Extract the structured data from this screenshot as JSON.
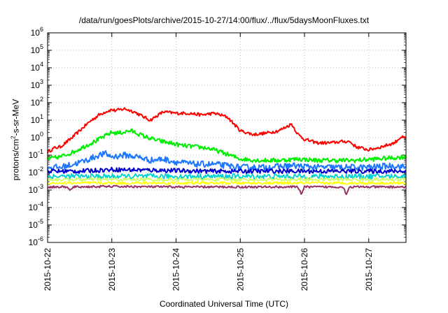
{
  "chart_data": {
    "type": "line",
    "title": "/data/run/goesPlots/archive/2015-10-27/14:00/flux/../flux/5daysMoonFluxes.txt",
    "xlabel": "Coordinated Universal Time (UTC)",
    "ylabel": {
      "base": "protons/cm",
      "exp": "2",
      "rest": "-s-sr-MeV"
    },
    "y_scale": "log",
    "ylim": [
      1e-06,
      1000000.0
    ],
    "xlim": [
      "2015-10-22T00:00",
      "2015-10-27T14:00"
    ],
    "x_ticks": [
      "2015-10-22",
      "2015-10-23",
      "2015-10-24",
      "2015-10-25",
      "2015-10-26",
      "2015-10-27"
    ],
    "y_ticks": [
      {
        "base": "10",
        "exp": "-6"
      },
      {
        "base": "10",
        "exp": "-5"
      },
      {
        "base": "10",
        "exp": "-4"
      },
      {
        "base": "10",
        "exp": "-3"
      },
      {
        "base": "10",
        "exp": "-2"
      },
      {
        "base": "10",
        "exp": "-1"
      },
      {
        "base": "10",
        "exp": "0"
      },
      {
        "base": "10",
        "exp": "1"
      },
      {
        "base": "10",
        "exp": "2"
      },
      {
        "base": "10",
        "exp": "3"
      },
      {
        "base": "10",
        "exp": "4"
      },
      {
        "base": "10",
        "exp": "5"
      },
      {
        "base": "10",
        "exp": "6"
      }
    ],
    "grid": true,
    "series": [
      {
        "color": "#ff0000",
        "x": [
          0,
          0.1,
          0.2,
          0.35,
          0.5,
          0.65,
          0.8,
          0.9,
          1.0,
          1.05,
          1.2,
          1.35,
          1.5,
          1.6,
          1.8,
          2.0,
          2.2,
          2.4,
          2.6,
          2.8,
          3.0,
          3.2,
          3.4,
          3.6,
          3.8,
          3.9,
          4.0,
          4.2,
          4.4,
          4.6,
          4.7,
          4.8,
          5.0,
          5.2,
          5.4,
          5.5,
          5.58
        ],
        "values": [
          0.15,
          0.25,
          0.3,
          0.8,
          2.5,
          8,
          20,
          30,
          40,
          35,
          45,
          30,
          15,
          10,
          30,
          25,
          25,
          20,
          25,
          15,
          2.5,
          1.5,
          1.8,
          2.5,
          6,
          1.5,
          0.8,
          0.5,
          0.5,
          0.6,
          0.6,
          0.3,
          0.2,
          0.3,
          0.5,
          1.1,
          0.9
        ]
      },
      {
        "color": "#00ee00",
        "x": [
          0,
          0.2,
          0.4,
          0.6,
          0.8,
          1.0,
          1.1,
          1.3,
          1.5,
          1.7,
          1.9,
          2.1,
          2.3,
          2.5,
          2.7,
          3.0,
          3.3,
          3.6,
          3.9,
          4.2,
          4.5,
          4.8,
          5.1,
          5.4,
          5.58
        ],
        "values": [
          0.06,
          0.08,
          0.15,
          0.35,
          0.8,
          2,
          1.8,
          2.5,
          1.2,
          0.7,
          0.5,
          0.35,
          0.3,
          0.25,
          0.15,
          0.06,
          0.05,
          0.05,
          0.06,
          0.05,
          0.05,
          0.05,
          0.06,
          0.07,
          0.08
        ]
      },
      {
        "color": "#1e78ff",
        "x": [
          0,
          0.2,
          0.4,
          0.6,
          0.8,
          0.9,
          1.0,
          1.2,
          1.4,
          1.6,
          1.8,
          2.0,
          2.3,
          2.6,
          3.0,
          3.4,
          3.8,
          4.2,
          4.6,
          5.0,
          5.4,
          5.58
        ],
        "values": [
          0.02,
          0.02,
          0.03,
          0.05,
          0.1,
          0.12,
          0.08,
          0.1,
          0.08,
          0.05,
          0.06,
          0.04,
          0.03,
          0.03,
          0.02,
          0.02,
          0.025,
          0.02,
          0.02,
          0.02,
          0.025,
          0.02
        ]
      },
      {
        "color": "#0000cc",
        "x": [
          0,
          0.5,
          1.0,
          1.5,
          2.0,
          2.5,
          3.0,
          3.5,
          4.0,
          4.5,
          5.0,
          5.58
        ],
        "values": [
          0.012,
          0.012,
          0.015,
          0.014,
          0.013,
          0.012,
          0.012,
          0.012,
          0.012,
          0.012,
          0.012,
          0.012
        ]
      },
      {
        "color": "#00d0d0",
        "x": [
          0,
          1.0,
          2.0,
          3.0,
          4.0,
          5.0,
          5.58
        ],
        "values": [
          0.006,
          0.006,
          0.006,
          0.006,
          0.006,
          0.006,
          0.006
        ]
      },
      {
        "color": "#ccff66",
        "x": [
          0,
          1.0,
          2.0,
          3.0,
          4.0,
          5.0,
          5.58
        ],
        "values": [
          0.004,
          0.004,
          0.004,
          0.004,
          0.004,
          0.004,
          0.004
        ]
      },
      {
        "color": "#ffff00",
        "x": [
          0,
          1.0,
          2.0,
          3.0,
          4.0,
          5.0,
          5.58
        ],
        "values": [
          0.0025,
          0.0025,
          0.0025,
          0.0025,
          0.0025,
          0.0025,
          0.0025
        ]
      },
      {
        "color": "#993366",
        "x": [
          0,
          0.3,
          0.35,
          0.4,
          1.0,
          2.0,
          3.0,
          3.9,
          3.95,
          4.0,
          4.6,
          4.65,
          4.7,
          5.0,
          5.58
        ],
        "values": [
          0.0015,
          0.0015,
          0.0009,
          0.0015,
          0.0016,
          0.0015,
          0.0015,
          0.0015,
          0.0006,
          0.0015,
          0.0015,
          0.0006,
          0.0015,
          0.0015,
          0.0015
        ]
      }
    ]
  }
}
